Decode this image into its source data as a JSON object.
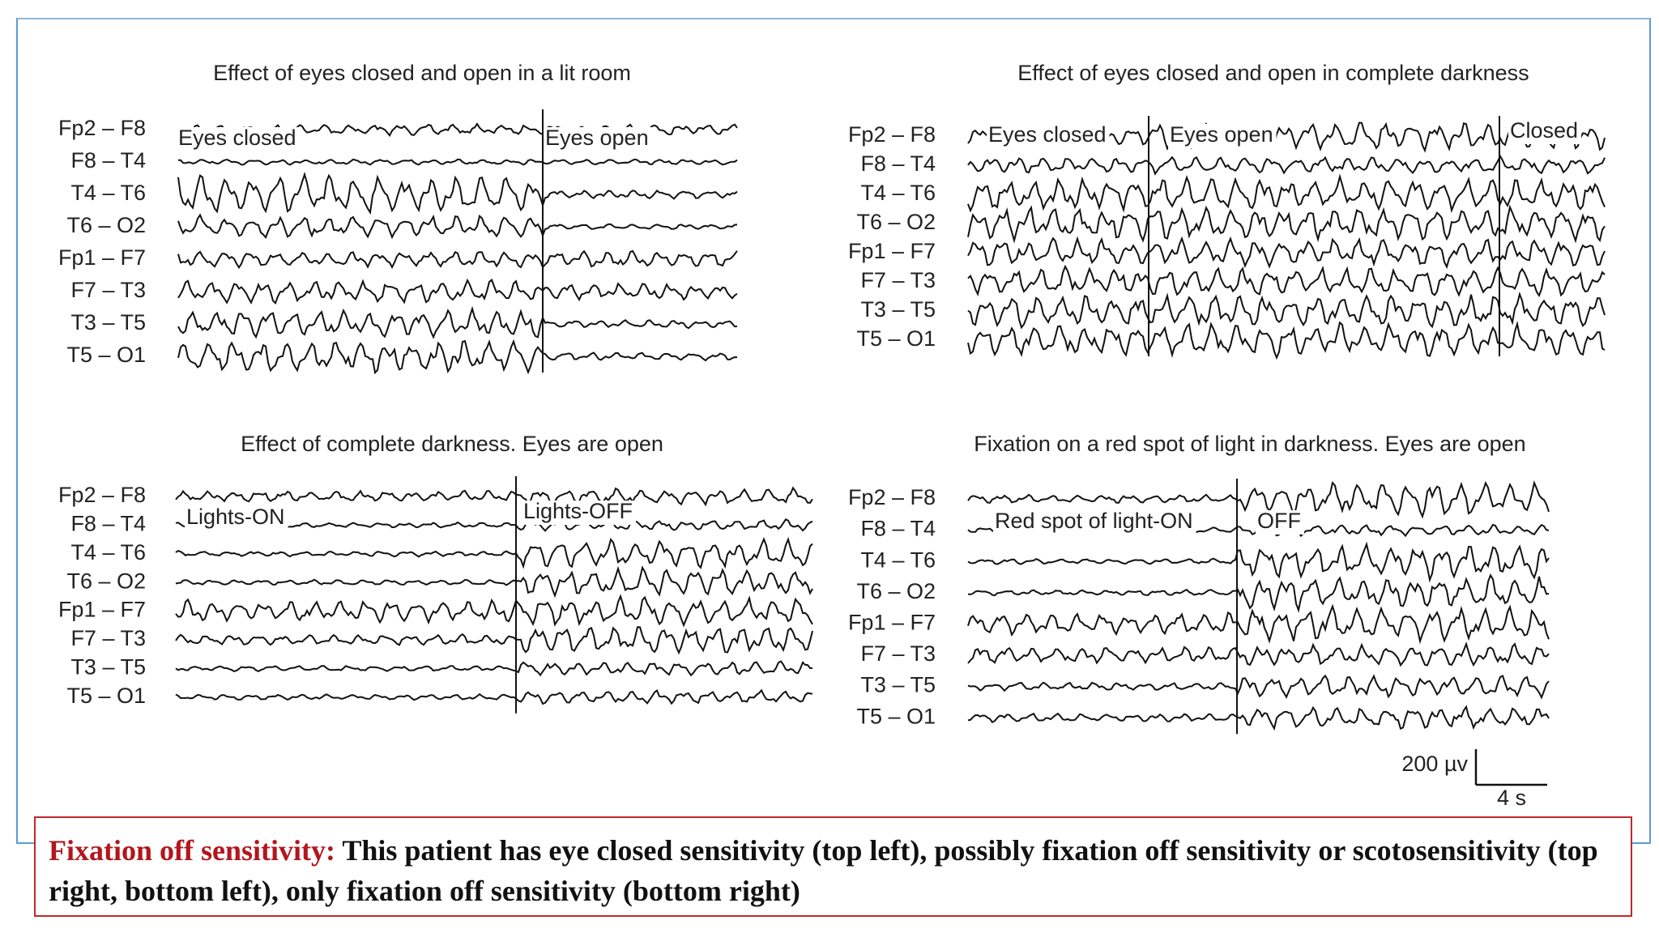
{
  "panels": [
    {
      "title": "Effect of eyes closed and open in a lit room",
      "channels": [
        "Fp2 – F8",
        "F8 – T4",
        "T4 – T6",
        "T6 – O2",
        "Fp1 – F7",
        "F7 – T3",
        "T3 – T5",
        "T5 – O1"
      ],
      "annotations": [
        "Eyes closed",
        "Eyes open"
      ]
    },
    {
      "title": "Effect of eyes closed and open in complete darkness",
      "channels": [
        "Fp2 – F8",
        "F8 – T4",
        "T4 – T6",
        "T6 – O2",
        "Fp1 – F7",
        "F7 – T3",
        "T3 – T5",
        "T5 – O1"
      ],
      "annotations": [
        "Eyes closed",
        "Eyes open",
        "Closed"
      ]
    },
    {
      "title": "Effect of complete darkness. Eyes are open",
      "channels": [
        "Fp2 – F8",
        "F8 – T4",
        "T4 – T6",
        "T6 – O2",
        "Fp1 – F7",
        "F7 – T3",
        "T3 – T5",
        "T5 – O1"
      ],
      "annotations": [
        "Lights-ON",
        "Lights-OFF"
      ]
    },
    {
      "title": "Fixation on a red spot of light in darkness. Eyes are open",
      "channels": [
        "Fp2 – F8",
        "F8 – T4",
        "T4 – T6",
        "T6 – O2",
        "Fp1 – F7",
        "F7 – T3",
        "T3 – T5",
        "T5 – O1"
      ],
      "annotations": [
        "Red spot of light-ON",
        "OFF"
      ]
    }
  ],
  "scale_bar": {
    "amplitude": "200 µv",
    "time": "4 s"
  },
  "caption": {
    "heading": "Fixation off  sensitivity:",
    "body": "This patient has eye closed sensitivity (top left), possibly fixation off sensitivity or scotosensitivity (top right, bottom left), only fixation off sensitivity (bottom right)"
  }
}
